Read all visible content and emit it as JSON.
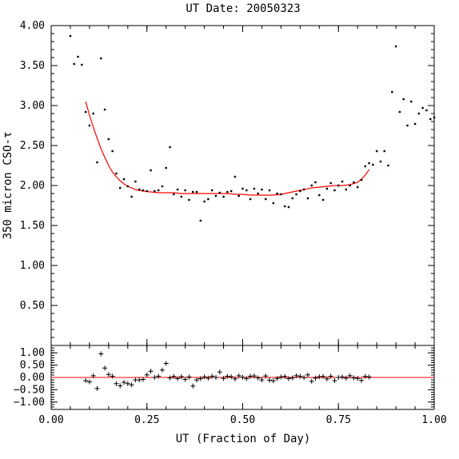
{
  "chart_data": [
    {
      "type": "scatter",
      "title": "UT Date: 20050323",
      "xlabel": "",
      "ylabel": "350 micron CSO-τ",
      "xlim": [
        0,
        1
      ],
      "ylim": [
        0,
        4
      ],
      "yticks": [
        0.5,
        1.0,
        1.5,
        2.0,
        2.5,
        3.0,
        3.5,
        4.0
      ],
      "ytick_labels": [
        "0.50",
        "1.00",
        "1.50",
        "2.00",
        "2.50",
        "3.00",
        "3.50",
        "4.00"
      ],
      "grid": false,
      "series": [
        {
          "kind": "points",
          "color": "#000000",
          "x": [
            0.05,
            0.06,
            0.07,
            0.08,
            0.09,
            0.1,
            0.11,
            0.12,
            0.13,
            0.14,
            0.15,
            0.16,
            0.17,
            0.18,
            0.19,
            0.2,
            0.21,
            0.22,
            0.23,
            0.24,
            0.25,
            0.26,
            0.27,
            0.28,
            0.29,
            0.3,
            0.31,
            0.32,
            0.33,
            0.34,
            0.35,
            0.36,
            0.37,
            0.38,
            0.39,
            0.4,
            0.41,
            0.42,
            0.43,
            0.44,
            0.45,
            0.46,
            0.47,
            0.48,
            0.49,
            0.5,
            0.51,
            0.52,
            0.53,
            0.54,
            0.55,
            0.56,
            0.57,
            0.58,
            0.59,
            0.6,
            0.61,
            0.62,
            0.63,
            0.64,
            0.65,
            0.66,
            0.67,
            0.68,
            0.69,
            0.7,
            0.71,
            0.72,
            0.73,
            0.74,
            0.75,
            0.76,
            0.77,
            0.78,
            0.79,
            0.8,
            0.81,
            0.82,
            0.83,
            0.84,
            0.85,
            0.86,
            0.87,
            0.88,
            0.89,
            0.9,
            0.91,
            0.92,
            0.93,
            0.94,
            0.95,
            0.96,
            0.97,
            0.98,
            0.99,
            1.0
          ],
          "y": [
            3.87,
            3.52,
            3.61,
            3.51,
            2.92,
            2.75,
            2.9,
            2.29,
            3.59,
            2.95,
            2.58,
            2.43,
            2.15,
            1.97,
            2.08,
            1.99,
            1.86,
            2.05,
            1.95,
            1.94,
            1.93,
            2.19,
            1.93,
            1.94,
            1.99,
            2.22,
            2.48,
            1.89,
            1.95,
            1.86,
            1.94,
            1.82,
            1.92,
            1.92,
            1.56,
            1.8,
            1.83,
            1.94,
            1.87,
            1.91,
            1.86,
            1.92,
            1.93,
            2.11,
            1.87,
            1.96,
            1.94,
            1.83,
            1.96,
            1.9,
            1.95,
            1.83,
            1.94,
            1.78,
            1.9,
            1.89,
            1.74,
            1.73,
            1.84,
            1.89,
            1.93,
            1.95,
            1.84,
            2.0,
            2.04,
            1.88,
            1.82,
            1.96,
            2.03,
            1.94,
            2.0,
            2.05,
            1.95,
            2.0,
            2.04,
            1.98,
            2.07,
            2.24,
            2.28,
            2.26,
            2.43,
            2.3,
            2.43,
            2.25,
            3.17,
            3.74,
            2.92,
            3.08,
            2.75,
            3.05,
            2.77,
            2.9,
            2.97,
            2.94,
            2.83,
            2.85
          ]
        },
        {
          "kind": "fit",
          "color": "#ff0000",
          "x": [
            0.09,
            0.1,
            0.11,
            0.12,
            0.13,
            0.14,
            0.15,
            0.16,
            0.17,
            0.18,
            0.19,
            0.2,
            0.22,
            0.24,
            0.26,
            0.28,
            0.3,
            0.32,
            0.34,
            0.36,
            0.38,
            0.4,
            0.42,
            0.44,
            0.46,
            0.48,
            0.5,
            0.52,
            0.54,
            0.56,
            0.58,
            0.6,
            0.62,
            0.64,
            0.66,
            0.68,
            0.7,
            0.72,
            0.74,
            0.76,
            0.78,
            0.8,
            0.81,
            0.82,
            0.83
          ],
          "y": [
            3.05,
            2.88,
            2.73,
            2.59,
            2.46,
            2.35,
            2.25,
            2.17,
            2.11,
            2.06,
            2.02,
            1.99,
            1.95,
            1.93,
            1.92,
            1.91,
            1.91,
            1.91,
            1.9,
            1.9,
            1.9,
            1.9,
            1.9,
            1.9,
            1.9,
            1.89,
            1.89,
            1.88,
            1.88,
            1.88,
            1.88,
            1.89,
            1.91,
            1.93,
            1.95,
            1.97,
            1.98,
            1.99,
            2.0,
            2.0,
            2.01,
            2.04,
            2.08,
            2.13,
            2.2
          ]
        }
      ]
    },
    {
      "type": "scatter",
      "title": "",
      "xlabel": "UT (Fraction of Day)",
      "ylabel": "",
      "xlim": [
        0,
        1
      ],
      "ylim": [
        -1.3,
        1.3
      ],
      "xticks": [
        0,
        0.25,
        0.5,
        0.75,
        1.0
      ],
      "xtick_labels": [
        "0.00",
        "0.25",
        "0.50",
        "0.75",
        "1.00"
      ],
      "yticks": [
        -1.0,
        -0.5,
        0.0,
        0.5,
        1.0
      ],
      "ytick_labels": [
        "−1.00",
        "−0.50",
        "0.00",
        "0.50",
        "1.00"
      ],
      "reference_line": {
        "y": 0.0,
        "color": "#ff0000"
      },
      "grid": false,
      "series": [
        {
          "kind": "residuals",
          "color": "#000000",
          "x": [
            0.09,
            0.1,
            0.11,
            0.12,
            0.13,
            0.14,
            0.15,
            0.16,
            0.17,
            0.18,
            0.19,
            0.2,
            0.21,
            0.22,
            0.23,
            0.24,
            0.25,
            0.26,
            0.27,
            0.28,
            0.29,
            0.3,
            0.31,
            0.32,
            0.33,
            0.34,
            0.35,
            0.36,
            0.37,
            0.38,
            0.39,
            0.4,
            0.41,
            0.42,
            0.43,
            0.44,
            0.45,
            0.46,
            0.47,
            0.48,
            0.49,
            0.5,
            0.51,
            0.52,
            0.53,
            0.54,
            0.55,
            0.56,
            0.57,
            0.58,
            0.59,
            0.6,
            0.61,
            0.62,
            0.63,
            0.64,
            0.65,
            0.66,
            0.67,
            0.68,
            0.69,
            0.7,
            0.71,
            0.72,
            0.73,
            0.74,
            0.75,
            0.76,
            0.77,
            0.78,
            0.79,
            0.8,
            0.81,
            0.82,
            0.83
          ],
          "y": [
            -0.13,
            -0.18,
            0.07,
            -0.45,
            0.96,
            0.38,
            0.12,
            0.05,
            -0.25,
            -0.34,
            -0.2,
            -0.25,
            -0.3,
            -0.1,
            -0.1,
            -0.08,
            0.1,
            0.25,
            0.0,
            0.05,
            0.3,
            0.57,
            -0.02,
            0.04,
            -0.05,
            0.03,
            -0.08,
            0.02,
            -0.35,
            -0.1,
            -0.05,
            0.02,
            -0.03,
            0.05,
            0.0,
            0.22,
            -0.04,
            0.05,
            0.03,
            -0.06,
            0.07,
            0.01,
            -0.05,
            0.05,
            0.06,
            -0.02,
            -0.1,
            0.06,
            -0.11,
            -0.14,
            -0.04,
            0.02,
            0.04,
            -0.05,
            -0.02,
            0.07,
            0.05,
            -0.01,
            0.1,
            -0.16,
            -0.03,
            0.03,
            0.04,
            -0.06,
            0.05,
            -0.13,
            0.0,
            0.02,
            -0.03,
            0.07,
            -0.02,
            -0.04,
            -0.12,
            0.04,
            0.02
          ]
        }
      ]
    }
  ]
}
